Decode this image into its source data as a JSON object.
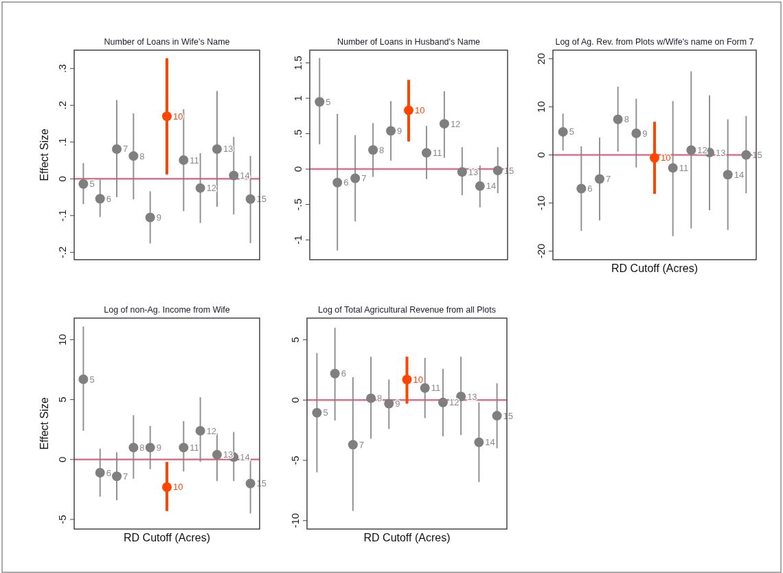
{
  "chart_data": [
    {
      "type": "scatter",
      "title": "Number of Loans in Wife's Name",
      "ylabel": "Effect Size",
      "categories": [
        null,
        null,
        null,
        null,
        null,
        null,
        null,
        null,
        null,
        null,
        null
      ],
      "ylim": [
        -0.22,
        0.35
      ],
      "yticks": [
        {
          "value": 0.3,
          "label": ".3"
        },
        {
          "value": 0.2,
          "label": ".2"
        },
        {
          "value": 0.1,
          "label": ".1"
        },
        0,
        {
          "value": -0.1,
          "label": "-.1"
        },
        {
          "value": -0.2,
          "label": "-.2"
        }
      ],
      "tick_labels": "y",
      "marker": "circle",
      "ref_lines": [
        {
          "axis": "y",
          "value": 0,
          "color": "#e0708a"
        }
      ],
      "series": [
        {
          "color": "#7f7f7f",
          "values": [
            -0.014,
            -0.054,
            0.081,
            0.062,
            -0.105,
            null,
            0.051,
            -0.025,
            0.081,
            0.009,
            -0.055
          ],
          "errors": [
            [
              -0.069,
              0.043
            ],
            [
              -0.104,
              -0.002
            ],
            [
              -0.05,
              0.214
            ],
            [
              -0.056,
              0.178
            ],
            [
              -0.176,
              -0.034
            ],
            null,
            [
              -0.088,
              0.189
            ],
            [
              -0.12,
              0.07
            ],
            [
              -0.076,
              0.239
            ],
            [
              -0.097,
              0.114
            ],
            [
              -0.175,
              0.062
            ]
          ]
        },
        {
          "color": "#ff4500",
          "values": [
            null,
            null,
            null,
            null,
            null,
            0.17,
            null,
            null,
            null,
            null,
            null
          ],
          "errors": [
            null,
            null,
            null,
            null,
            null,
            [
              0.012,
              0.328
            ],
            null,
            null,
            null,
            null,
            null
          ]
        }
      ],
      "annotations": [
        "5",
        "6",
        "7",
        "8",
        "9",
        "10",
        "11",
        "12",
        "13",
        "14",
        "15"
      ]
    },
    {
      "type": "scatter",
      "title": "Number of Loans in Husband's Name",
      "categories": [
        null,
        null,
        null,
        null,
        null,
        null,
        null,
        null,
        null,
        null,
        null
      ],
      "ylim": [
        -1.28,
        1.68
      ],
      "yticks": [
        1.5,
        1,
        {
          "value": 0.5,
          "label": ".5"
        },
        0,
        {
          "value": -0.5,
          "label": "-.5"
        },
        -1
      ],
      "tick_labels": "y",
      "marker": "circle",
      "ref_lines": [
        {
          "axis": "y",
          "value": 0,
          "color": "#e0708a"
        }
      ],
      "series": [
        {
          "color": "#7f7f7f",
          "values": [
            0.95,
            -0.19,
            -0.13,
            0.27,
            0.54,
            null,
            0.23,
            0.64,
            -0.04,
            -0.24,
            -0.02
          ],
          "errors": [
            [
              0.35,
              1.57
            ],
            [
              -1.15,
              0.78
            ],
            [
              -0.74,
              0.48
            ],
            [
              -0.11,
              0.65
            ],
            [
              0.12,
              0.96
            ],
            null,
            [
              -0.14,
              0.61
            ],
            [
              0.16,
              1.1
            ],
            [
              -0.37,
              0.31
            ],
            [
              -0.54,
              0.05
            ],
            [
              -0.34,
              0.31
            ]
          ]
        },
        {
          "color": "#ff4500",
          "values": [
            null,
            null,
            null,
            null,
            null,
            0.83,
            null,
            null,
            null,
            null,
            null
          ],
          "errors": [
            null,
            null,
            null,
            null,
            null,
            [
              0.39,
              1.26
            ],
            null,
            null,
            null,
            null,
            null
          ]
        }
      ],
      "annotations": [
        "5",
        "6",
        "7",
        "8",
        "9",
        "10",
        "11",
        "12",
        "13",
        "14",
        "15"
      ]
    },
    {
      "type": "scatter",
      "title": "Log of Ag. Rev. from Plots w/Wife's name on Form 7",
      "xlabel": "RD Cutoff (Acres)",
      "categories": [
        null,
        null,
        null,
        null,
        null,
        null,
        null,
        null,
        null,
        null,
        null
      ],
      "ylim": [
        -21.8,
        21.8
      ],
      "yticks": [
        20,
        10,
        0,
        -10,
        -20
      ],
      "tick_labels": "y",
      "marker": "circle",
      "ref_lines": [
        {
          "axis": "y",
          "value": 0,
          "color": "#e0708a"
        }
      ],
      "series": [
        {
          "color": "#7f7f7f",
          "values": [
            4.8,
            -7.0,
            -5.0,
            7.4,
            4.5,
            null,
            -2.7,
            1.0,
            0.5,
            -4.1,
            0
          ],
          "errors": [
            [
              0.9,
              8.6
            ],
            [
              -15.8,
              1.8
            ],
            [
              -13.6,
              3.6
            ],
            [
              0.7,
              14.2
            ],
            [
              -2.6,
              11.7
            ],
            null,
            [
              -16.9,
              11.2
            ],
            [
              -15.3,
              17.4
            ],
            [
              -11.5,
              12.4
            ],
            [
              -15.6,
              7.4
            ],
            [
              -8.0,
              8.1
            ]
          ]
        },
        {
          "color": "#ff4500",
          "values": [
            null,
            null,
            null,
            null,
            null,
            -0.6,
            null,
            null,
            null,
            null,
            null
          ],
          "errors": [
            null,
            null,
            null,
            null,
            null,
            [
              -8.1,
              6.9
            ],
            null,
            null,
            null,
            null,
            null
          ]
        }
      ],
      "annotations": [
        "5",
        "6",
        "7",
        "8",
        "9",
        "10",
        "11",
        "12",
        "13",
        "14",
        "15"
      ]
    },
    {
      "type": "scatter",
      "title": "Log of non-Ag. Income from Wife",
      "xlabel": "RD Cutoff (Acres)",
      "ylabel": "Effect Size",
      "categories": [
        null,
        null,
        null,
        null,
        null,
        null,
        null,
        null,
        null,
        null,
        null
      ],
      "ylim": [
        -5.8,
        11.8
      ],
      "yticks": [
        10,
        5,
        0,
        -5
      ],
      "tick_labels": "y",
      "marker": "circle",
      "ref_lines": [
        {
          "axis": "y",
          "value": 0,
          "color": "#e0708a"
        }
      ],
      "series": [
        {
          "color": "#7f7f7f",
          "values": [
            6.7,
            -1.1,
            -1.4,
            1.0,
            1.0,
            null,
            1.0,
            2.4,
            0.4,
            0.2,
            -2.0
          ],
          "errors": [
            [
              2.4,
              11.1
            ],
            [
              -3.1,
              0.9
            ],
            [
              -3.4,
              0.6
            ],
            [
              -1.6,
              3.7
            ],
            [
              -0.8,
              2.8
            ],
            null,
            [
              -1.0,
              3.2
            ],
            [
              -0.2,
              5.2
            ],
            [
              -1.8,
              2.2
            ],
            [
              -1.8,
              2.3
            ],
            [
              -4.5,
              -0.1
            ]
          ]
        },
        {
          "color": "#ff4500",
          "values": [
            null,
            null,
            null,
            null,
            null,
            -2.3,
            null,
            null,
            null,
            null,
            null
          ],
          "errors": [
            null,
            null,
            null,
            null,
            null,
            [
              -4.3,
              -0.2
            ],
            null,
            null,
            null,
            null,
            null
          ]
        }
      ],
      "annotations": [
        "5",
        "6",
        "7",
        "8",
        "9",
        "10",
        "11",
        "12",
        "13",
        "14",
        "15"
      ]
    },
    {
      "type": "scatter",
      "title": "Log of Total Agricultural Revenue from all Plots",
      "xlabel": "RD Cutoff (Acres)",
      "categories": [
        null,
        null,
        null,
        null,
        null,
        null,
        null,
        null,
        null,
        null,
        null
      ],
      "ylim": [
        -10.7,
        6.8
      ],
      "yticks": [
        5,
        0,
        -5,
        -10
      ],
      "tick_labels": "y",
      "marker": "circle",
      "ref_lines": [
        {
          "axis": "y",
          "value": 0,
          "color": "#e0708a"
        }
      ],
      "series": [
        {
          "color": "#7f7f7f",
          "values": [
            -1.05,
            2.2,
            -3.7,
            0.15,
            -0.3,
            null,
            1.0,
            -0.2,
            0.3,
            -3.5,
            -1.3
          ],
          "errors": [
            [
              -6.0,
              3.9
            ],
            [
              -1.7,
              6.0
            ],
            [
              -9.2,
              1.9
            ],
            [
              -3.2,
              3.6
            ],
            [
              -2.4,
              1.7
            ],
            null,
            [
              -1.5,
              3.5
            ],
            [
              -3.0,
              2.6
            ],
            [
              -2.9,
              3.6
            ],
            [
              -6.8,
              -0.2
            ],
            [
              -4.0,
              1.4
            ]
          ]
        },
        {
          "color": "#ff4500",
          "values": [
            null,
            null,
            null,
            null,
            null,
            1.7,
            null,
            null,
            null,
            null,
            null
          ],
          "errors": [
            null,
            null,
            null,
            null,
            null,
            [
              -0.3,
              3.6
            ],
            null,
            null,
            null,
            null,
            null
          ]
        }
      ],
      "annotations": [
        "5",
        "6",
        "7",
        "8",
        "9",
        "10",
        "11",
        "12",
        "13",
        "14",
        "15"
      ]
    }
  ]
}
